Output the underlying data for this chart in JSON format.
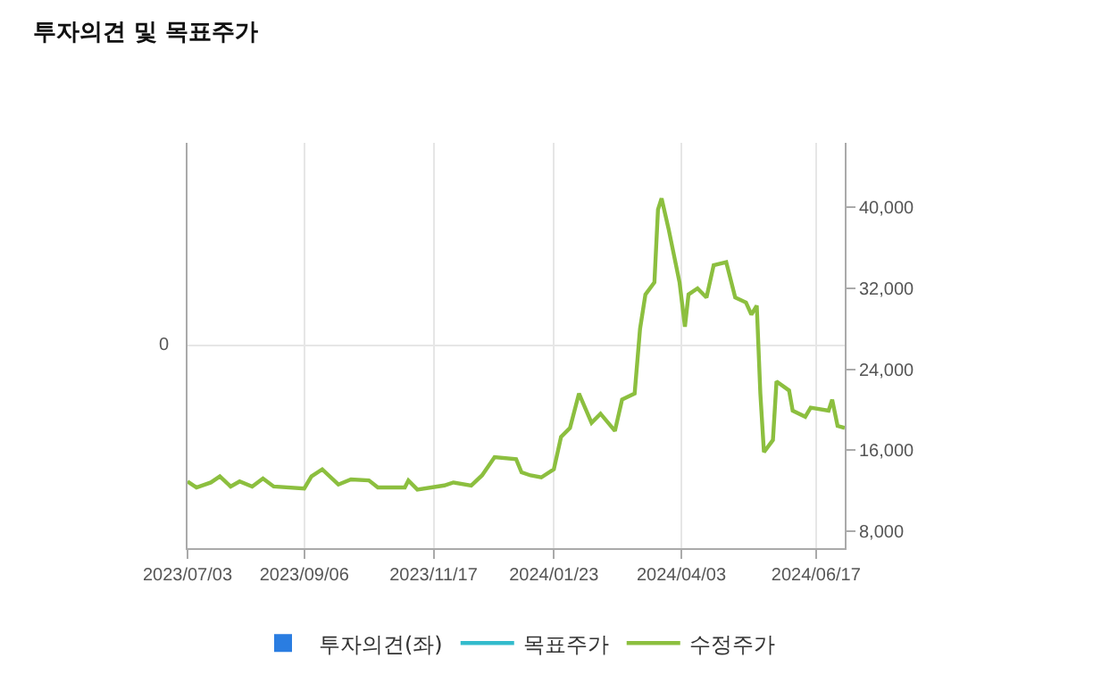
{
  "chart_data": {
    "type": "line",
    "title": "투자의견 및 목표주가",
    "x": [
      "2023-07-03",
      "2023-07-08",
      "2023-07-16",
      "2023-07-21",
      "2023-07-27",
      "2023-08-01",
      "2023-08-08",
      "2023-08-14",
      "2023-08-20",
      "2023-09-06",
      "2023-09-10",
      "2023-09-16",
      "2023-09-25",
      "2023-10-02",
      "2023-10-12",
      "2023-10-17",
      "2023-11-01",
      "2023-11-03",
      "2023-11-08",
      "2023-11-23",
      "2023-11-28",
      "2023-12-08",
      "2023-12-14",
      "2023-12-21",
      "2024-01-02",
      "2024-01-05",
      "2024-01-10",
      "2024-01-16",
      "2024-01-23",
      "2024-01-27",
      "2024-02-01",
      "2024-02-06",
      "2024-02-13",
      "2024-02-18",
      "2024-02-26",
      "2024-03-01",
      "2024-03-08",
      "2024-03-11",
      "2024-03-14",
      "2024-03-19",
      "2024-03-21",
      "2024-03-23",
      "2024-03-27",
      "2024-04-02",
      "2024-04-05",
      "2024-04-07",
      "2024-04-12",
      "2024-04-17",
      "2024-04-21",
      "2024-04-28",
      "2024-05-03",
      "2024-05-09",
      "2024-05-12",
      "2024-05-15",
      "2024-05-17",
      "2024-05-19",
      "2024-05-24",
      "2024-05-26",
      "2024-06-02",
      "2024-06-04",
      "2024-06-11",
      "2024-06-14",
      "2024-06-24",
      "2024-06-26",
      "2024-06-29",
      "2024-07-03"
    ],
    "series": [
      {
        "name": "투자의견(좌)",
        "type": "bar",
        "color": "#2a7de1",
        "values": [
          null,
          null,
          null,
          null,
          null,
          null,
          null,
          null,
          null,
          null,
          null,
          null,
          null,
          null,
          null,
          null,
          null,
          null,
          null,
          null,
          null,
          null,
          null,
          null,
          null,
          null,
          null,
          null,
          null,
          null,
          null,
          null,
          null,
          null,
          null,
          null,
          null,
          null,
          null,
          null,
          null,
          null,
          null,
          null,
          null,
          null,
          null,
          null,
          null,
          null,
          null,
          null,
          null,
          null,
          null,
          null,
          null,
          null,
          null,
          null,
          null,
          null,
          null,
          null,
          null,
          null
        ]
      },
      {
        "name": "목표주가",
        "axis": "y2",
        "color": "#33bbcc",
        "values": [
          null,
          null,
          null,
          null,
          null,
          null,
          null,
          null,
          null,
          null,
          null,
          null,
          null,
          null,
          null,
          null,
          null,
          null,
          null,
          null,
          null,
          null,
          null,
          null,
          null,
          null,
          null,
          null,
          null,
          null,
          null,
          null,
          null,
          null,
          null,
          null,
          null,
          null,
          null,
          null,
          null,
          null,
          null,
          null,
          null,
          null,
          null,
          null,
          null,
          null,
          null,
          null,
          null,
          null,
          null,
          null,
          null,
          null,
          null,
          null,
          null,
          null,
          null,
          null,
          null,
          null
        ]
      },
      {
        "name": "수정주가",
        "axis": "y2",
        "color": "#8cbf3f",
        "values": [
          12900,
          12300,
          12800,
          13400,
          12400,
          12900,
          12400,
          13200,
          12400,
          12200,
          13400,
          14100,
          12600,
          13100,
          13000,
          12300,
          12300,
          13000,
          12100,
          12500,
          12800,
          12500,
          13500,
          15300,
          15100,
          13800,
          13500,
          13300,
          14100,
          17300,
          18200,
          21600,
          18700,
          19600,
          17900,
          21000,
          21600,
          28000,
          31400,
          32600,
          39800,
          40900,
          37800,
          32600,
          28200,
          31400,
          32000,
          31100,
          34300,
          34600,
          31100,
          30600,
          29400,
          30300,
          21600,
          15800,
          17000,
          22800,
          21900,
          19900,
          19300,
          20200,
          19900,
          21000,
          18400,
          18200
        ]
      }
    ],
    "xlim": [
      "2023-07-03",
      "2024-07-03"
    ],
    "xticks": [
      {
        "value": "2023-07-03",
        "label": "2023/07/03"
      },
      {
        "value": "2023-09-06",
        "label": "2023/09/06"
      },
      {
        "value": "2023-11-17",
        "label": "2023/11/17"
      },
      {
        "value": "2024-01-23",
        "label": "2024/01/23"
      },
      {
        "value": "2024-04-03",
        "label": "2024/04/03"
      },
      {
        "value": "2024-06-17",
        "label": "2024/06/17"
      }
    ],
    "annotations": [
      "0"
    ],
    "y2lim": [
      6300,
      46400
    ],
    "y2ticks": [
      {
        "value": 8000,
        "label": "8,000"
      },
      {
        "value": 16000,
        "label": "16,000"
      },
      {
        "value": 24000,
        "label": "24,000"
      },
      {
        "value": 32000,
        "label": "32,000"
      },
      {
        "value": 40000,
        "label": "40,000"
      }
    ],
    "grid": true,
    "legend": "bottom"
  }
}
